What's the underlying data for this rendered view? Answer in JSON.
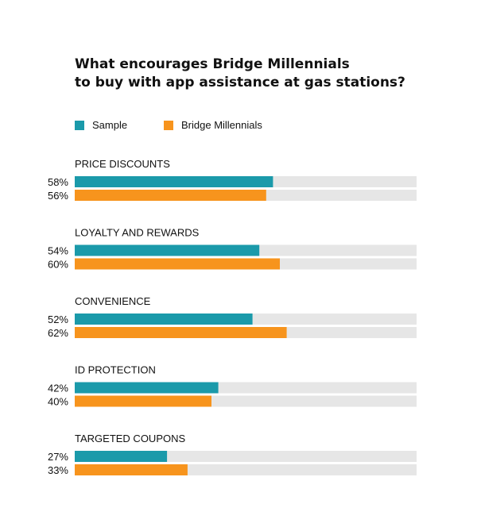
{
  "title": {
    "line1": "What encourages Bridge Millennials",
    "line2": "to buy with app assistance at gas stations?"
  },
  "legend": [
    {
      "label": "Sample",
      "color": "#1b9aaa"
    },
    {
      "label": "Bridge Millennials",
      "color": "#f7941d"
    }
  ],
  "colors": {
    "track": "#e6e6e6",
    "sample": "#1b9aaa",
    "bridge": "#f7941d"
  },
  "chart_data": {
    "type": "bar",
    "orientation": "horizontal",
    "categories": [
      "PRICE DISCOUNTS",
      "LOYALTY AND REWARDS",
      "CONVENIENCE",
      "ID PROTECTION",
      "TARGETED COUPONS"
    ],
    "series": [
      {
        "name": "Sample",
        "color": "#1b9aaa",
        "values": [
          58,
          54,
          52,
          42,
          27
        ],
        "labels": [
          "58%",
          "54%",
          "52%",
          "42%",
          "27%"
        ]
      },
      {
        "name": "Bridge Millennials",
        "color": "#f7941d",
        "values": [
          56,
          60,
          62,
          40,
          33
        ],
        "labels": [
          "56%",
          "60%",
          "62%",
          "40%",
          "33%"
        ]
      }
    ],
    "xlim": [
      0,
      100
    ],
    "grid": false,
    "legend_position": "top-left"
  }
}
